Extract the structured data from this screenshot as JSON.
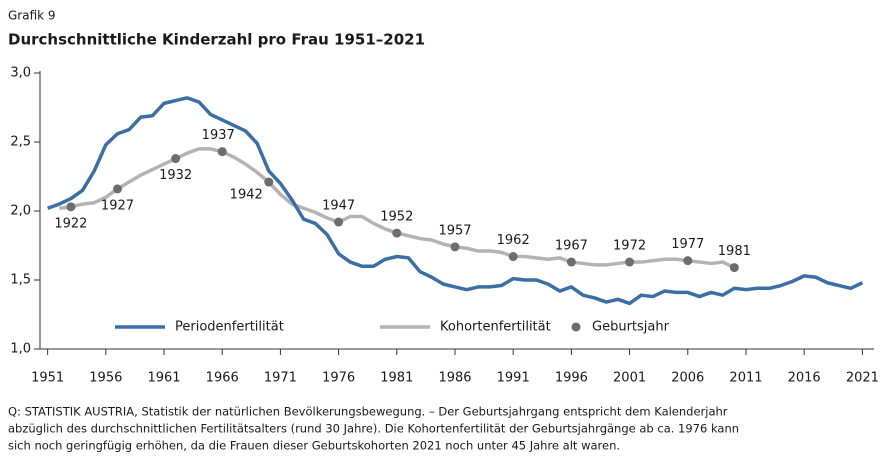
{
  "chart_data": {
    "type": "line",
    "kicker": "Grafik 9",
    "title": "Durchschnittliche Kinderzahl pro Frau 1951–2021",
    "note_lines": [
      "Q: STATISTIK AUSTRIA, Statistik der natürlichen Bevölkerungsbewegung. – Der Geburtsjahrgang entspricht dem Kalenderjahr",
      "abzüglich des durchschnittlichen Fertilitätsalters (rund 30 Jahre). Die Kohortenfertilität der Geburtsjahrgänge ab ca. 1976 kann",
      "sich noch geringfügig erhöhen, da die Frauen dieser Geburtskohorten 2021 noch unter 45 Jahre alt waren."
    ],
    "xlim": [
      1950,
      2022
    ],
    "xticks": [
      1951,
      1956,
      1961,
      1966,
      1971,
      1976,
      1981,
      1986,
      1991,
      1996,
      2001,
      2006,
      2011,
      2016,
      2021
    ],
    "ylim": [
      1,
      3
    ],
    "yticks": [
      {
        "value": 1,
        "label": "1,0"
      },
      {
        "value": 1.5,
        "label": "1,5"
      },
      {
        "value": 2,
        "label": "2,0"
      },
      {
        "value": 2.5,
        "label": "2,5"
      },
      {
        "value": 3,
        "label": "3,0"
      }
    ],
    "series": [
      {
        "name": "Periodenfertilität",
        "color": "#3a6ea5",
        "x": [
          1951,
          1952,
          1953,
          1954,
          1955,
          1956,
          1957,
          1958,
          1959,
          1960,
          1961,
          1962,
          1963,
          1964,
          1965,
          1966,
          1967,
          1968,
          1969,
          1970,
          1971,
          1972,
          1973,
          1974,
          1975,
          1976,
          1977,
          1978,
          1979,
          1980,
          1981,
          1982,
          1983,
          1984,
          1985,
          1986,
          1987,
          1988,
          1989,
          1990,
          1991,
          1992,
          1993,
          1994,
          1995,
          1996,
          1997,
          1998,
          1999,
          2000,
          2001,
          2002,
          2003,
          2004,
          2005,
          2006,
          2007,
          2008,
          2009,
          2010,
          2011,
          2012,
          2013,
          2014,
          2015,
          2016,
          2017,
          2018,
          2019,
          2020,
          2021
        ],
        "values": [
          2.02,
          2.05,
          2.09,
          2.15,
          2.29,
          2.48,
          2.56,
          2.59,
          2.68,
          2.69,
          2.78,
          2.8,
          2.82,
          2.79,
          2.7,
          2.66,
          2.62,
          2.58,
          2.49,
          2.29,
          2.2,
          2.08,
          1.94,
          1.91,
          1.83,
          1.69,
          1.63,
          1.6,
          1.6,
          1.65,
          1.67,
          1.66,
          1.56,
          1.52,
          1.47,
          1.45,
          1.43,
          1.45,
          1.45,
          1.46,
          1.51,
          1.5,
          1.5,
          1.47,
          1.42,
          1.45,
          1.39,
          1.37,
          1.34,
          1.36,
          1.33,
          1.39,
          1.38,
          1.42,
          1.41,
          1.41,
          1.38,
          1.41,
          1.39,
          1.44,
          1.43,
          1.44,
          1.44,
          1.46,
          1.49,
          1.53,
          1.52,
          1.48,
          1.46,
          1.44,
          1.48
        ]
      },
      {
        "name": "Kohortenfertilität",
        "color": "#b3b3b3",
        "x": [
          1952,
          1953,
          1954,
          1955,
          1956,
          1957,
          1958,
          1959,
          1960,
          1961,
          1962,
          1963,
          1964,
          1965,
          1966,
          1967,
          1968,
          1969,
          1970,
          1971,
          1972,
          1973,
          1974,
          1975,
          1976,
          1977,
          1978,
          1979,
          1980,
          1981,
          1982,
          1983,
          1984,
          1985,
          1986,
          1987,
          1988,
          1989,
          1990,
          1991,
          1992,
          1993,
          1994,
          1995,
          1996,
          1997,
          1998,
          1999,
          2000,
          2001,
          2002,
          2003,
          2004,
          2005,
          2006,
          2007,
          2008,
          2009,
          2010
        ],
        "values": [
          2.02,
          2.03,
          2.05,
          2.06,
          2.1,
          2.16,
          2.21,
          2.26,
          2.3,
          2.34,
          2.38,
          2.42,
          2.45,
          2.45,
          2.43,
          2.39,
          2.34,
          2.28,
          2.21,
          2.12,
          2.05,
          2.02,
          1.99,
          1.95,
          1.92,
          1.96,
          1.96,
          1.91,
          1.87,
          1.84,
          1.82,
          1.8,
          1.79,
          1.76,
          1.74,
          1.73,
          1.71,
          1.71,
          1.7,
          1.67,
          1.67,
          1.66,
          1.65,
          1.66,
          1.63,
          1.62,
          1.61,
          1.61,
          1.62,
          1.63,
          1.63,
          1.64,
          1.65,
          1.65,
          1.64,
          1.63,
          1.62,
          1.63,
          1.59
        ]
      }
    ],
    "markers": {
      "name": "Geburtsjahr",
      "color": "#6d6d6d",
      "x": [
        1953,
        1957,
        1962,
        1966,
        1970,
        1976,
        1981,
        1986,
        1991,
        1996,
        2001,
        2006,
        2010
      ],
      "values": [
        2.03,
        2.16,
        2.38,
        2.43,
        2.21,
        1.92,
        1.84,
        1.74,
        1.67,
        1.63,
        1.63,
        1.64,
        1.59
      ],
      "labels": [
        1922,
        1927,
        1932,
        1937,
        1942,
        1947,
        1952,
        1957,
        1962,
        1967,
        1972,
        1977,
        1981
      ]
    }
  }
}
